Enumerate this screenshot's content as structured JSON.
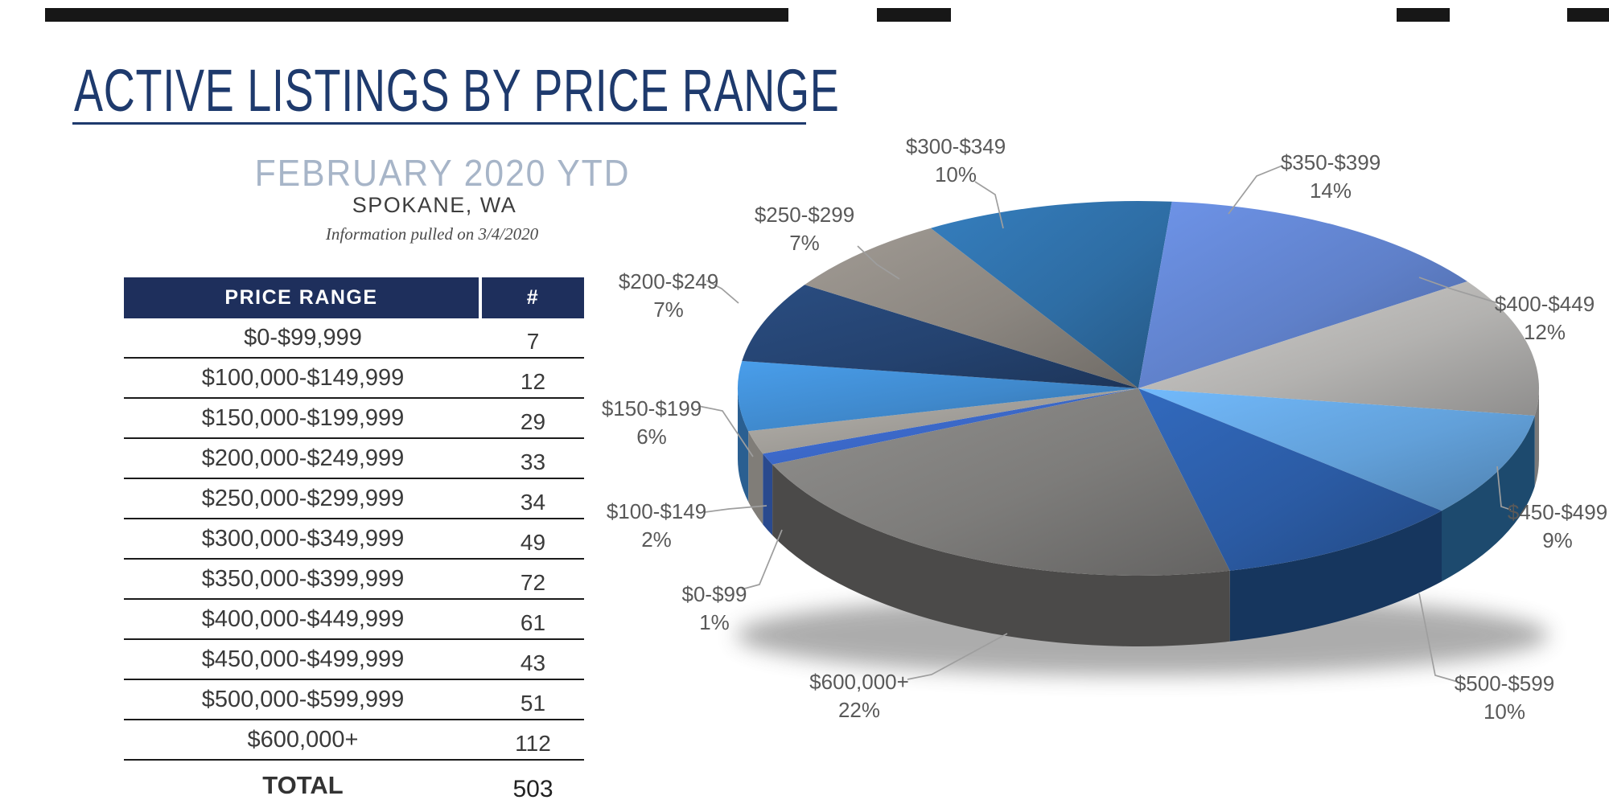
{
  "header": {
    "title": "ACTIVE LISTINGS BY PRICE RANGE",
    "subtitle": "FEBRUARY 2020 YTD",
    "location": "SPOKANE, WA",
    "info_note": "Information pulled on 3/4/2020",
    "accent_color": "#1e3a6d",
    "subtitle_color": "#a7b5c8"
  },
  "table": {
    "columns": [
      "PRICE RANGE",
      "#"
    ],
    "header_bg": "#1e2f5c",
    "rows": [
      {
        "range": "$0-$99,999",
        "count": "7"
      },
      {
        "range": "$100,000-$149,999",
        "count": "12"
      },
      {
        "range": "$150,000-$199,999",
        "count": "29"
      },
      {
        "range": "$200,000-$249,999",
        "count": "33"
      },
      {
        "range": "$250,000-$299,999",
        "count": "34"
      },
      {
        "range": "$300,000-$349,999",
        "count": "49"
      },
      {
        "range": "$350,000-$399,999",
        "count": "72"
      },
      {
        "range": "$400,000-$449,999",
        "count": "61"
      },
      {
        "range": "$450,000-$499,999",
        "count": "43"
      },
      {
        "range": "$500,000-$599,999",
        "count": "51"
      },
      {
        "range": "$600,000+",
        "count": "112"
      }
    ],
    "total_label": "TOTAL",
    "total_count": "503"
  },
  "chart_data": {
    "type": "pie",
    "style": "3d",
    "total": 503,
    "start_angle_deg": 246,
    "label_color": "#595959",
    "leader_color": "#9e9e9e",
    "slices": [
      {
        "label": "$0-$99",
        "pct": 1,
        "value": 7,
        "color": "#3a66c4",
        "wall": "#2a4a8e"
      },
      {
        "label": "$100-$149",
        "pct": 2,
        "value": 12,
        "color": "#9e9b96",
        "wall": "#807d78"
      },
      {
        "label": "$150-$199",
        "pct": 6,
        "value": 29,
        "color": "#3f88cb",
        "wall": "#2a5f91"
      },
      {
        "label": "$200-$249",
        "pct": 7,
        "value": 33,
        "color": "#24426f",
        "wall": "#16294a"
      },
      {
        "label": "$250-$299",
        "pct": 7,
        "value": 34,
        "color": "#8b8680",
        "wall": "#5e5a55"
      },
      {
        "label": "$300-$349",
        "pct": 10,
        "value": 49,
        "color": "#2e6da4",
        "wall": "#1f4a74"
      },
      {
        "label": "$350-$399",
        "pct": 14,
        "value": 72,
        "color": "#5f80c9",
        "wall": "#41598f"
      },
      {
        "label": "$400-$449",
        "pct": 12,
        "value": 61,
        "color": "#b3b2b0",
        "wall": "#7a7978"
      },
      {
        "label": "$450-$499",
        "pct": 9,
        "value": 43,
        "color": "#62a0d9",
        "wall": "#1d4a6e"
      },
      {
        "label": "$500-$599",
        "pct": 10,
        "value": 51,
        "color": "#2b5ba4",
        "wall": "#16365e"
      },
      {
        "label": "$600,000+",
        "pct": 22,
        "value": 112,
        "color": "#7d7c7a",
        "wall": "#4b4a49"
      }
    ]
  }
}
